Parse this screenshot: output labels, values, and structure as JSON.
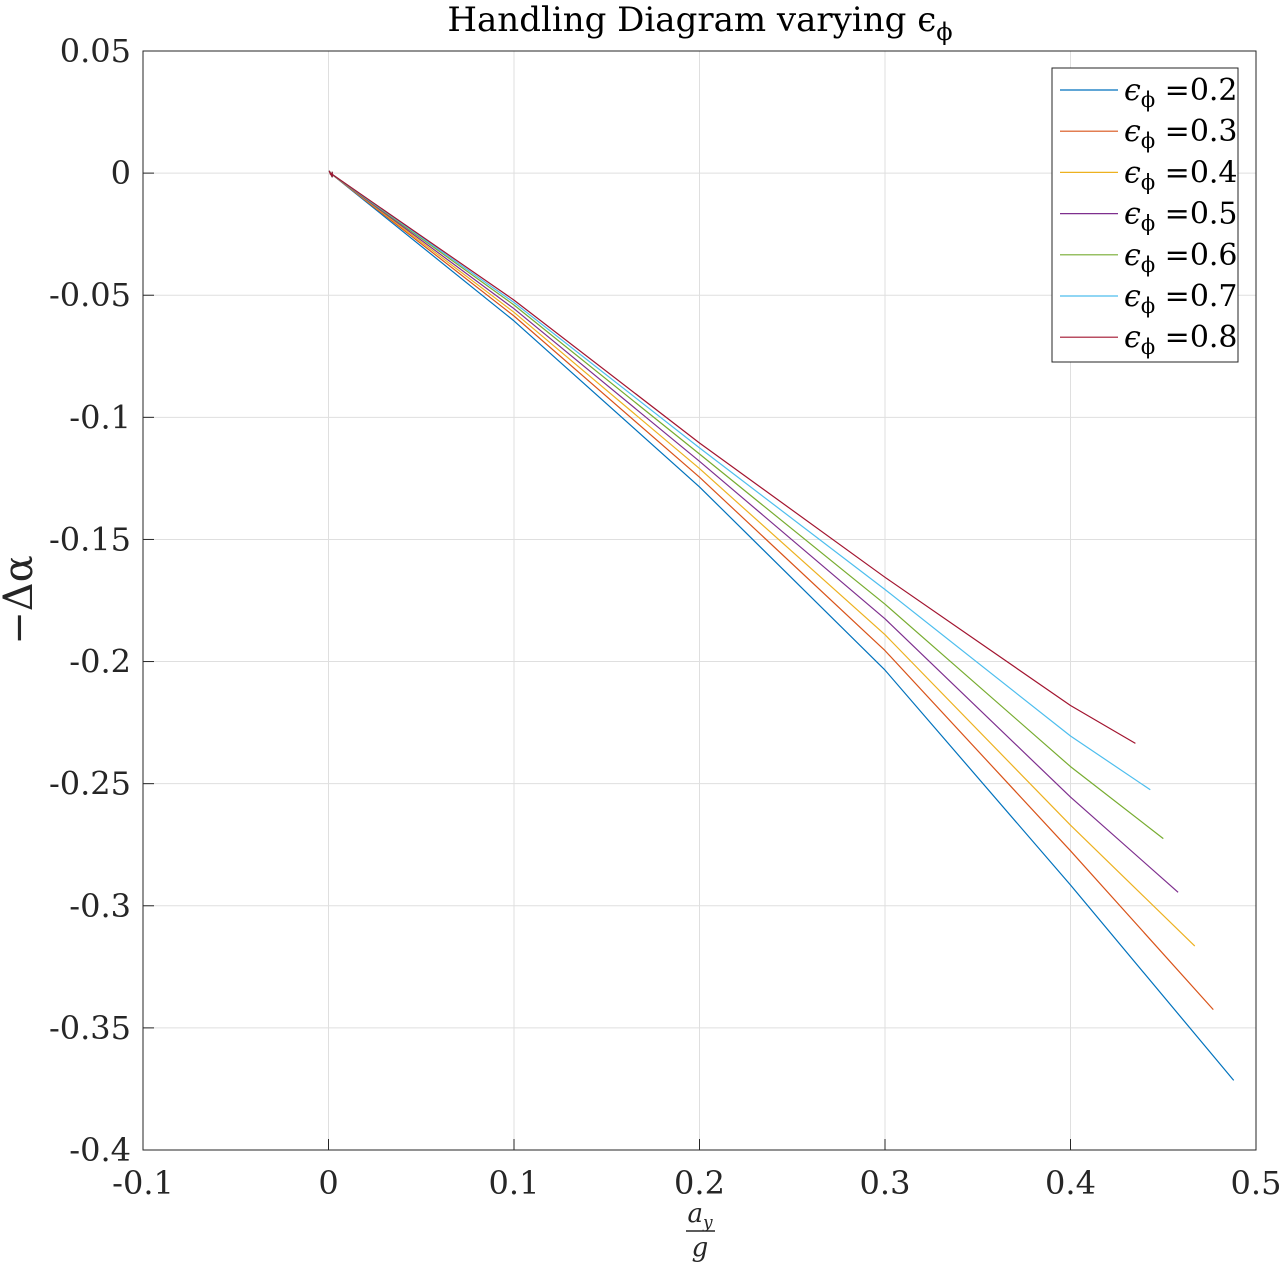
{
  "chart_data": {
    "type": "line",
    "title": "Handling Diagram varying ϵ",
    "title_subscript": "ϕ",
    "xlabel_num": "a",
    "xlabel_num_sub": "y",
    "xlabel_den": "g",
    "ylabel": "−Δα",
    "xlim": [
      -0.1,
      0.5
    ],
    "ylim": [
      -0.4,
      0.05
    ],
    "xticks": [
      -0.1,
      0,
      0.1,
      0.2,
      0.3,
      0.4,
      0.5
    ],
    "xtick_labels": [
      "-0.1",
      "0",
      "0.1",
      "0.2",
      "0.3",
      "0.4",
      "0.5"
    ],
    "yticks": [
      0.05,
      0,
      -0.05,
      -0.1,
      -0.15,
      -0.2,
      -0.25,
      -0.3,
      -0.35,
      -0.4
    ],
    "ytick_labels": [
      "0.05",
      "0",
      "-0.05",
      "-0.1",
      "-0.15",
      "-0.2",
      "-0.25",
      "-0.3",
      "-0.35",
      "-0.4"
    ],
    "grid": true,
    "legend_position": "top-right",
    "legend_symbol": "ϵ",
    "legend_subscript": "ϕ",
    "series": [
      {
        "name": "=0.2",
        "color": "#0072BD",
        "x": [
          0.001,
          0.1,
          0.2,
          0.3,
          0.4,
          0.488
        ],
        "y": [
          0,
          -0.0605,
          -0.1285,
          -0.2035,
          -0.2915,
          -0.3715
        ]
      },
      {
        "name": "=0.3",
        "color": "#D95319",
        "x": [
          0.001,
          0.1,
          0.2,
          0.3,
          0.4,
          0.477
        ],
        "y": [
          0,
          -0.0585,
          -0.1245,
          -0.1955,
          -0.2775,
          -0.3425
        ]
      },
      {
        "name": "=0.4",
        "color": "#EDB120",
        "x": [
          0.001,
          0.1,
          0.2,
          0.3,
          0.4,
          0.467
        ],
        "y": [
          0,
          -0.057,
          -0.121,
          -0.189,
          -0.267,
          -0.3165
        ]
      },
      {
        "name": "=0.5",
        "color": "#7E2F8E",
        "x": [
          0.001,
          0.1,
          0.2,
          0.3,
          0.4,
          0.458
        ],
        "y": [
          0,
          -0.0555,
          -0.118,
          -0.1825,
          -0.2555,
          -0.2945
        ]
      },
      {
        "name": "=0.6",
        "color": "#77AC30",
        "x": [
          0.001,
          0.1,
          0.2,
          0.3,
          0.4,
          0.45
        ],
        "y": [
          0,
          -0.054,
          -0.115,
          -0.1765,
          -0.243,
          -0.2725
        ]
      },
      {
        "name": "=0.7",
        "color": "#4DBEEE",
        "x": [
          0.001,
          0.1,
          0.2,
          0.3,
          0.4,
          0.443
        ],
        "y": [
          0,
          -0.053,
          -0.1125,
          -0.1705,
          -0.2305,
          -0.2525
        ]
      },
      {
        "name": "=0.8",
        "color": "#A2142F",
        "x": [
          0.001,
          0.1,
          0.2,
          0.3,
          0.4,
          0.435
        ],
        "y": [
          0,
          -0.052,
          -0.1105,
          -0.1655,
          -0.218,
          -0.2335
        ]
      }
    ]
  }
}
